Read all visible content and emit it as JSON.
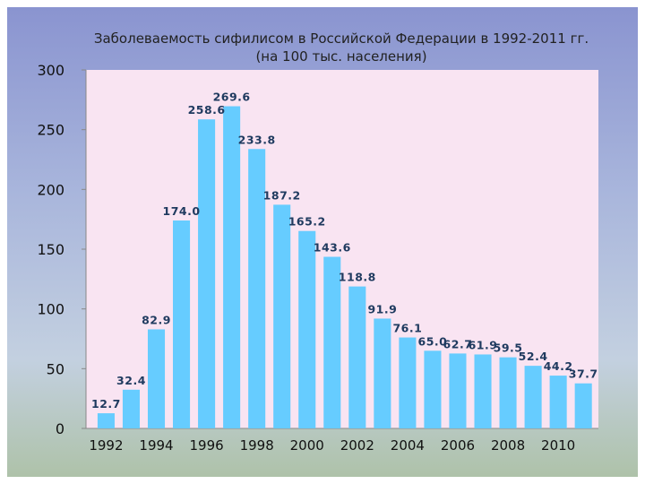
{
  "chart_data": {
    "type": "bar",
    "title": "Заболеваемость сифилисом в Российской Федерации в 1992-2011 гг.",
    "subtitle": "(на 100 тыс. населения)",
    "xlabel": "",
    "ylabel": "",
    "categories": [
      "1992",
      "1993",
      "1994",
      "1995",
      "1996",
      "1997",
      "1998",
      "1999",
      "2000",
      "2001",
      "2002",
      "2003",
      "2004",
      "2005",
      "2006",
      "2007",
      "2008",
      "2009",
      "2010",
      "2011"
    ],
    "x_tick_labels": [
      "1992",
      "1994",
      "1996",
      "1998",
      "2000",
      "2002",
      "2004",
      "2006",
      "2008",
      "2010"
    ],
    "values": [
      12.7,
      32.4,
      82.9,
      174.0,
      258.6,
      269.6,
      233.8,
      187.2,
      165.2,
      143.6,
      118.8,
      91.9,
      76.1,
      65.0,
      62.7,
      61.9,
      59.5,
      52.4,
      44.2,
      37.7
    ],
    "data_labels": [
      "12.7",
      "32.4",
      "82.9",
      "174.0",
      "258.6",
      "269.6",
      "233.8",
      "187.2",
      "165.2",
      "143.6",
      "118.8",
      "91.9",
      "76.1",
      "65.0",
      "62.7",
      "61.9",
      "59.5",
      "52.4",
      "44.2",
      "37.7"
    ],
    "y_ticks": [
      "0",
      "50",
      "100",
      "150",
      "200",
      "250",
      "300"
    ],
    "ylim": [
      0,
      300
    ],
    "grid": false,
    "legend": "none",
    "colors": {
      "bar": "#66ccff",
      "plot_background": "#f9e4f2",
      "label": "#1f3a5f"
    }
  }
}
